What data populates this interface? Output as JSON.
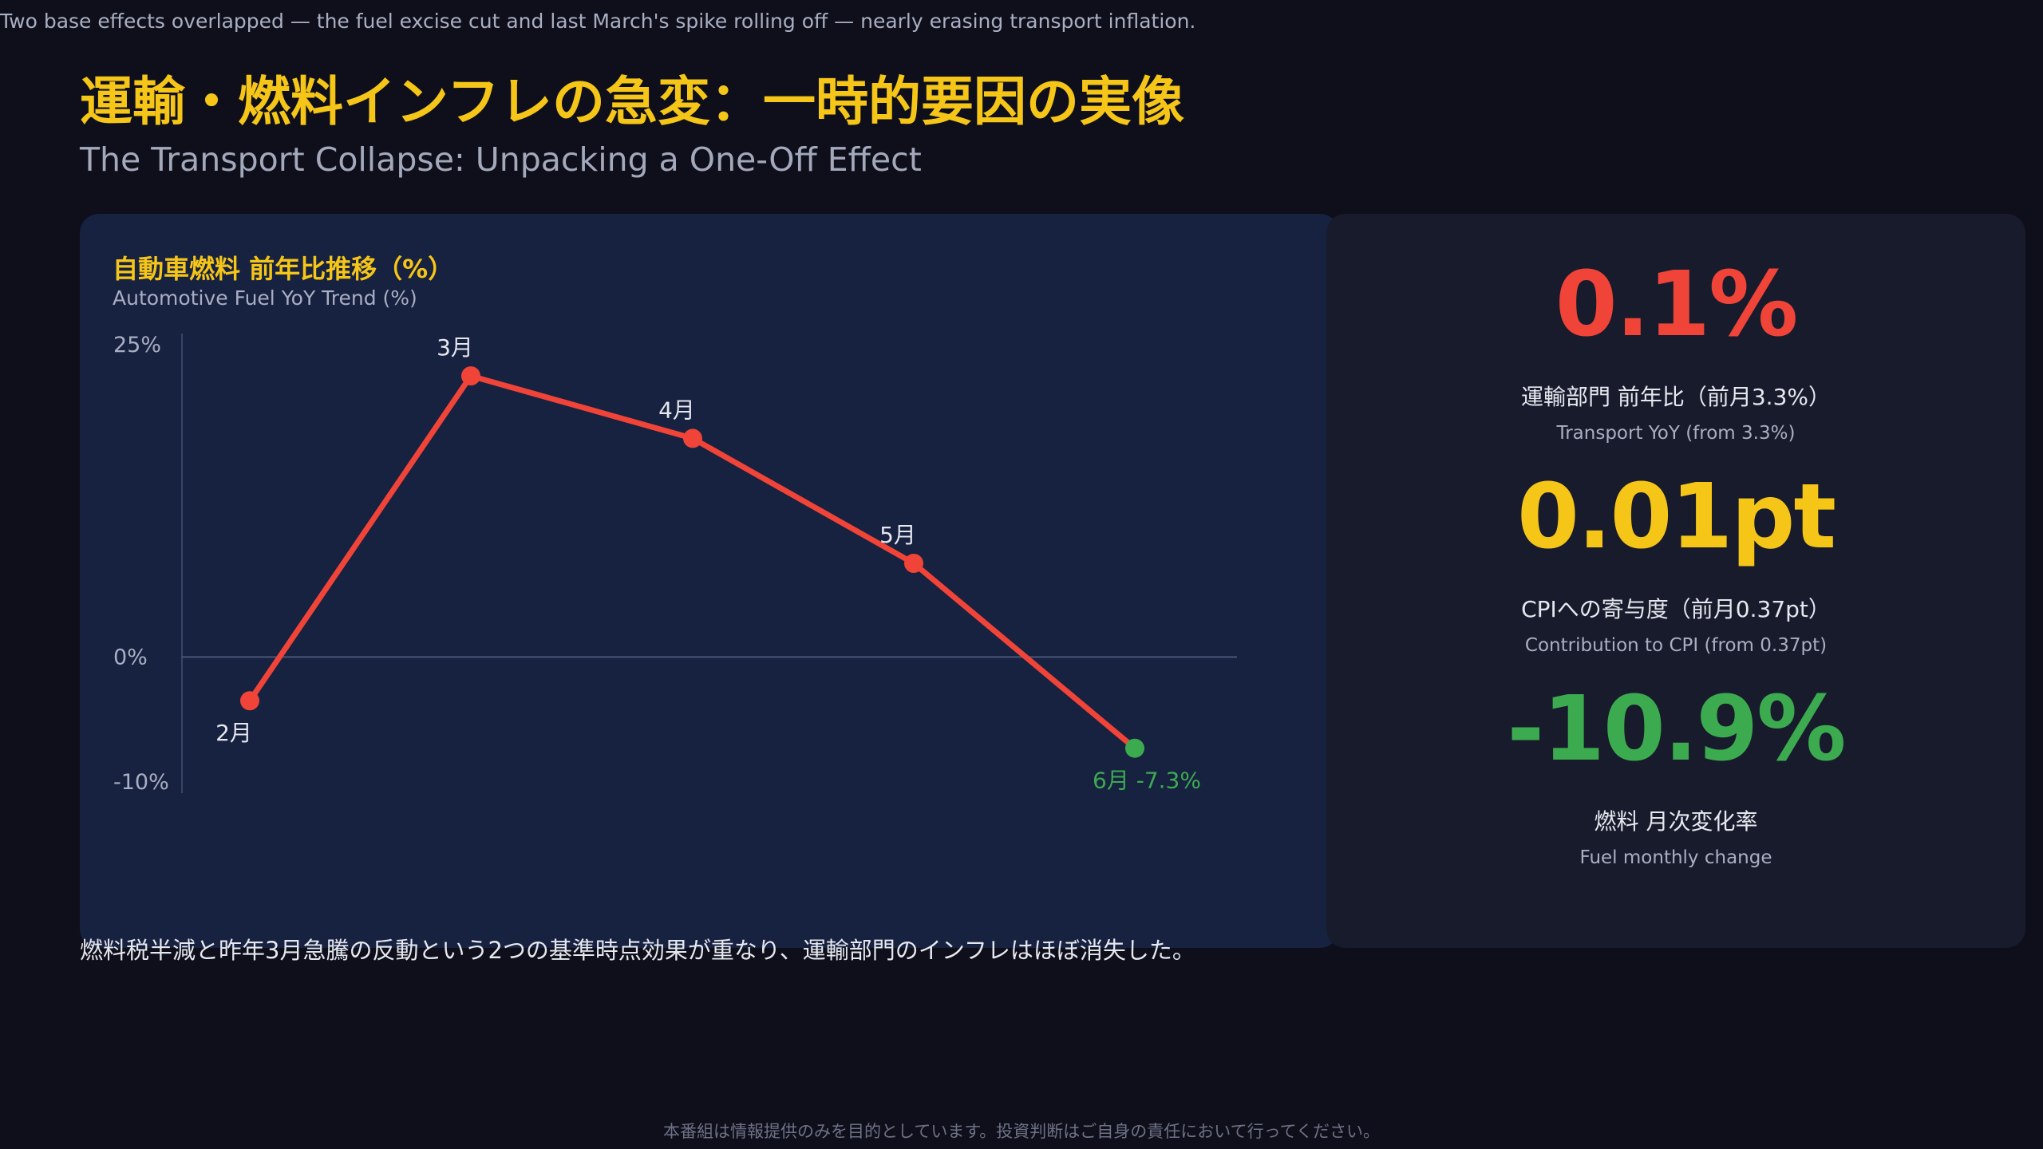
{
  "caption": "Two base effects overlapped — the fuel excise cut and last March's spike rolling off — nearly erasing transport inflation.",
  "title": "運輸・燃料インフレの急変：一時的要因の実像",
  "subtitle": "The Transport Collapse: Unpacking a One-Off Effect",
  "chart_panel": {
    "title_ja": "自動車燃料 前年比推移（%）",
    "title_en": "Automotive Fuel YoY Trend (%)"
  },
  "chart_data": {
    "type": "line",
    "title": "自動車燃料 前年比推移（%）",
    "subtitle": "Automotive Fuel YoY Trend (%)",
    "categories": [
      "2月",
      "3月",
      "4月",
      "5月",
      "6月"
    ],
    "series": [
      {
        "values": [
          -3.5,
          22.5,
          17.5,
          7.5,
          -7.3
        ],
        "point_labels": [
          "2月",
          "3月",
          "4月",
          "5月",
          "6月 -7.3%"
        ]
      }
    ],
    "y_ticks": [
      25,
      0,
      -10
    ],
    "y_tick_labels": [
      "25%",
      "0%",
      "-10%"
    ],
    "ylim": [
      -10,
      25
    ],
    "grid": false,
    "zero_line": true,
    "colors": {
      "line": "#f04438",
      "last_point": "#3cab4f",
      "zero_line": "#4a5578"
    }
  },
  "kpis": [
    {
      "value": "0.1%",
      "label_ja": "運輸部門 前年比（前月3.3%）",
      "label_en": "Transport YoY (from 3.3%)",
      "color": "#f04438"
    },
    {
      "value": "0.01pt",
      "label_ja": "CPIへの寄与度（前月0.37pt）",
      "label_en": "Contribution to CPI (from 0.37pt)",
      "color": "#f5c518"
    },
    {
      "value": "-10.9%",
      "label_ja": "燃料 月次変化率",
      "label_en": "Fuel monthly change",
      "color": "#3cab4f"
    }
  ],
  "footnote": "燃料税半減と昨年3月急騰の反動という2つの基準時点効果が重なり、運輸部門のインフレはほぼ消失した。",
  "disclaimer": "本番組は情報提供のみを目的としています。投資判断はご自身の責任において行ってください。"
}
